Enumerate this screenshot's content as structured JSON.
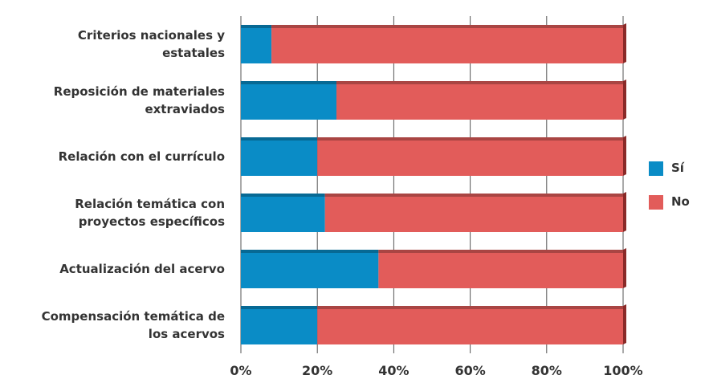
{
  "chart_data": {
    "type": "stacked_barh",
    "categories": [
      "Criterios nacionales y estatales",
      "Reposición de materiales extraviados",
      "Relación con el currículo",
      "Relación temática con proyectos específicos",
      "Actualización del acervo",
      "Compensación temática de los acervos"
    ],
    "series": [
      {
        "name": "Sí",
        "color": "#0a8cc6",
        "values": [
          8,
          25,
          20,
          22,
          36,
          20
        ]
      },
      {
        "name": "No",
        "color": "#e25c5a",
        "values": [
          92,
          75,
          80,
          78,
          64,
          80
        ]
      }
    ],
    "xlim": [
      0,
      100
    ],
    "xticks": [
      {
        "value": 0,
        "label": "0%"
      },
      {
        "value": 20,
        "label": "20%"
      },
      {
        "value": 40,
        "label": "40%"
      },
      {
        "value": 60,
        "label": "60%"
      },
      {
        "value": 80,
        "label": "80%"
      },
      {
        "value": 100,
        "label": "100%"
      }
    ],
    "grid": true,
    "legend": "right"
  }
}
